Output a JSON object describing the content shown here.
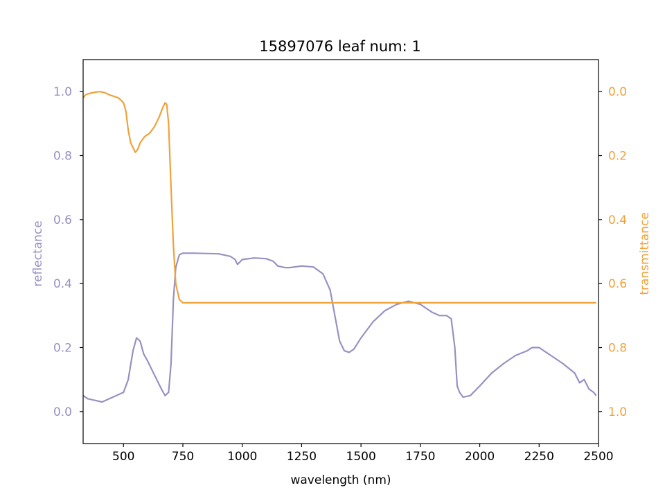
{
  "chart_data": {
    "type": "line",
    "title": "15897076 leaf num: 1",
    "xlabel": "wavelength (nm)",
    "ylabel_left": "reflectance",
    "ylabel_right": "transmittance",
    "xlim": [
      330,
      2500
    ],
    "ylim_left": [
      -0.1,
      1.1
    ],
    "ylim_right": [
      1.1,
      -0.1
    ],
    "right_axis_inverted": true,
    "grid": false,
    "x_ticks": [
      "500",
      "750",
      "1000",
      "1250",
      "1500",
      "1750",
      "2000",
      "2250",
      "2500"
    ],
    "y_ticks_left": [
      "0.0",
      "0.2",
      "0.4",
      "0.6",
      "0.8",
      "1.0"
    ],
    "y_ticks_right": [
      "0.0",
      "0.2",
      "0.4",
      "0.6",
      "0.8",
      "1.0"
    ],
    "colors": {
      "reflectance": "#9890c2",
      "transmittance": "#f0a23a"
    },
    "series": [
      {
        "axis": "left",
        "color": "#9890c2",
        "x": [
          330,
          350,
          380,
          410,
          440,
          470,
          500,
          520,
          540,
          555,
          570,
          585,
          600,
          620,
          640,
          660,
          675,
          690,
          700,
          710,
          720,
          735,
          750,
          800,
          850,
          900,
          950,
          970,
          980,
          1000,
          1050,
          1100,
          1130,
          1150,
          1180,
          1200,
          1250,
          1300,
          1340,
          1370,
          1390,
          1410,
          1430,
          1450,
          1470,
          1500,
          1550,
          1600,
          1650,
          1700,
          1750,
          1780,
          1800,
          1830,
          1860,
          1880,
          1895,
          1905,
          1915,
          1930,
          1960,
          2000,
          2050,
          2100,
          2150,
          2200,
          2220,
          2250,
          2300,
          2350,
          2400,
          2420,
          2440,
          2460,
          2480,
          2490
        ],
        "y": [
          0.05,
          0.04,
          0.035,
          0.03,
          0.04,
          0.05,
          0.06,
          0.1,
          0.19,
          0.23,
          0.22,
          0.18,
          0.16,
          0.13,
          0.1,
          0.07,
          0.05,
          0.06,
          0.15,
          0.35,
          0.45,
          0.49,
          0.495,
          0.495,
          0.494,
          0.493,
          0.485,
          0.475,
          0.46,
          0.475,
          0.48,
          0.478,
          0.47,
          0.455,
          0.45,
          0.45,
          0.455,
          0.452,
          0.43,
          0.38,
          0.3,
          0.22,
          0.19,
          0.185,
          0.195,
          0.23,
          0.28,
          0.315,
          0.335,
          0.345,
          0.335,
          0.32,
          0.31,
          0.3,
          0.3,
          0.29,
          0.2,
          0.08,
          0.06,
          0.045,
          0.05,
          0.08,
          0.12,
          0.15,
          0.175,
          0.19,
          0.2,
          0.2,
          0.175,
          0.15,
          0.12,
          0.09,
          0.1,
          0.07,
          0.06,
          0.05
        ]
      },
      {
        "axis": "right",
        "color": "#f0a23a",
        "x": [
          330,
          340,
          360,
          380,
          400,
          420,
          440,
          460,
          480,
          500,
          510,
          520,
          530,
          550,
          560,
          570,
          590,
          610,
          630,
          650,
          665,
          675,
          682,
          690,
          700,
          710,
          720,
          735,
          750,
          800,
          850,
          900,
          950,
          970,
          980,
          1000,
          1050,
          1100,
          1130,
          1150,
          1180,
          1200,
          1250,
          1300,
          1340,
          1370,
          1385,
          1400,
          1420,
          1440,
          1460,
          1480,
          1500,
          1550,
          1600,
          1650,
          1700,
          1750,
          1780,
          1800,
          1830,
          1860,
          1880,
          1890,
          1900,
          1910,
          1925,
          1950,
          2000,
          2050,
          2100,
          2150,
          2200,
          2220,
          2250,
          2300,
          2350,
          2400,
          2450,
          2480,
          2490
        ],
        "y": [
          0.02,
          0.01,
          0.005,
          0.002,
          0.0,
          0.003,
          0.01,
          0.015,
          0.02,
          0.035,
          0.06,
          0.12,
          0.16,
          0.19,
          0.18,
          0.16,
          0.14,
          0.13,
          0.11,
          0.08,
          0.05,
          0.035,
          0.04,
          0.1,
          0.3,
          0.48,
          0.6,
          0.65,
          0.66,
          0.66,
          0.66,
          0.66,
          0.66,
          0.66,
          0.66,
          0.66,
          0.66,
          0.66,
          0.66,
          0.66,
          0.66,
          0.66,
          0.66,
          0.66,
          0.66,
          0.66,
          0.66,
          0.66,
          0.66,
          0.66,
          0.66,
          0.66,
          0.66,
          0.66,
          0.66,
          0.66,
          0.66,
          0.66,
          0.66,
          0.66,
          0.66,
          0.66,
          0.66,
          0.66,
          0.66,
          0.66,
          0.66,
          0.66,
          0.66,
          0.66,
          0.66,
          0.66,
          0.66,
          0.66,
          0.66,
          0.66,
          0.66,
          0.66,
          0.66,
          0.66,
          0.66
        ]
      }
    ]
  }
}
